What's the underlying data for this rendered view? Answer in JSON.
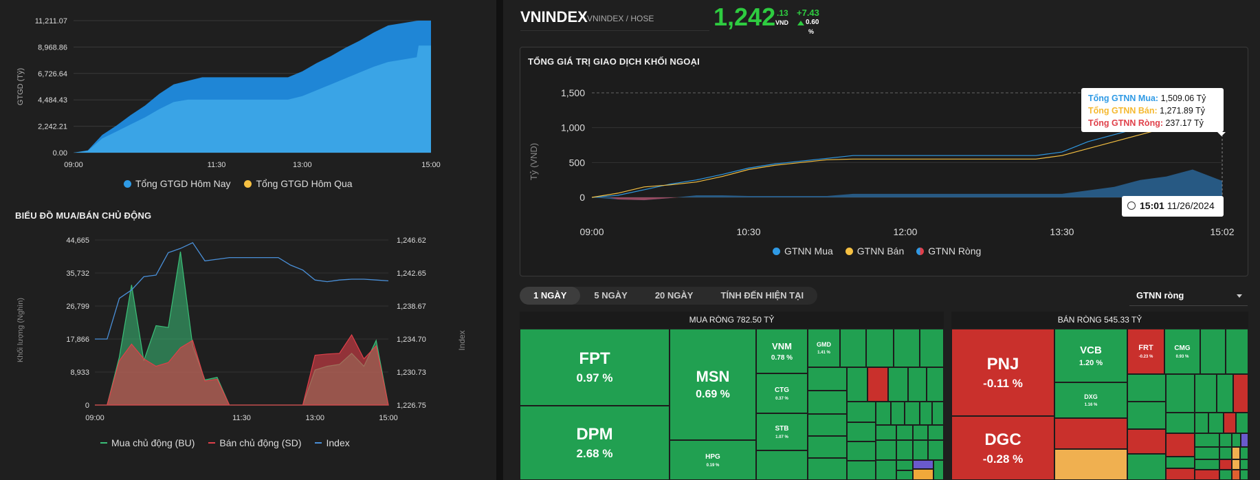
{
  "header": {
    "ticker": "VNINDEX",
    "sub": "VNINDEX / HOSE",
    "price_int": "1,242",
    "price_dec": ".13",
    "currency": "VND",
    "change": "+7.43",
    "change_pct": "0.60",
    "pct_sign": "%"
  },
  "colors": {
    "buy_blue": "#2f9ae5",
    "sell_yellow": "#f5b930",
    "net_red": "#e0404a",
    "bu_green": "#3bbf78",
    "sd_red": "#e0404a",
    "index_blue": "#4a90d9",
    "up_green": "#2ecc40",
    "tile_green": "#21a051",
    "tile_red": "#c9302c"
  },
  "chart_data": [
    {
      "type": "area",
      "ylabel": "GTGD (Tỷ)",
      "yticks": [
        "11,211.07",
        "8,968.86",
        "6,726.64",
        "4,484.43",
        "2,242.21",
        "0.00"
      ],
      "ylim": [
        0,
        11211.07
      ],
      "xticks": [
        "09:00",
        "11:30",
        "13:00",
        "15:00"
      ],
      "series": [
        {
          "name": "Tổng GTGD Hôm Nay",
          "x": [
            0,
            15,
            30,
            45,
            60,
            75,
            90,
            105,
            120,
            135,
            150,
            165,
            180,
            195,
            210,
            225,
            240,
            255,
            270,
            285,
            300,
            315,
            330,
            345,
            360,
            362,
            375
          ],
          "values": [
            0,
            200,
            1500,
            2300,
            3200,
            4000,
            5000,
            5800,
            6100,
            6400,
            6400,
            6400,
            6400,
            6400,
            6400,
            6400,
            6900,
            7600,
            8200,
            8900,
            9500,
            10200,
            10800,
            11000,
            11200,
            11211,
            11211
          ]
        },
        {
          "name": "Tổng GTGD Hôm Qua",
          "x": [
            0,
            15,
            30,
            45,
            60,
            75,
            90,
            105,
            120,
            135,
            150,
            165,
            180,
            195,
            210,
            225,
            240,
            255,
            270,
            285,
            300,
            315,
            330,
            345,
            360,
            362,
            375
          ],
          "values": [
            0,
            150,
            1200,
            1800,
            2400,
            3000,
            3700,
            4300,
            4500,
            4500,
            4500,
            4500,
            4500,
            4500,
            4500,
            4500,
            4800,
            5300,
            5800,
            6300,
            6800,
            7300,
            7700,
            7900,
            8100,
            9100,
            9100
          ]
        }
      ],
      "legend": [
        "Tổng GTGD Hôm Nay",
        "Tổng GTGD Hôm Qua"
      ]
    },
    {
      "type": "area",
      "title": "BIỂU ĐỒ MUA/BÁN CHỦ ĐỘNG",
      "ylabel": "Khối lượng (Nghìn)",
      "y2label": "Index",
      "yticks": [
        "44,665",
        "35,732",
        "26,799",
        "17,866",
        "8,933",
        "0"
      ],
      "y2ticks": [
        "1,246.62",
        "1,242.65",
        "1,238.67",
        "1,234.70",
        "1,230.73",
        "1,226.75"
      ],
      "ylim": [
        0,
        44665
      ],
      "y2lim": [
        1226.75,
        1246.62
      ],
      "xticks": [
        "09:00",
        "11:30",
        "13:00",
        "15:00"
      ],
      "series": [
        {
          "name": "Mua chủ động (BU)",
          "x": [
            0,
            15,
            30,
            45,
            60,
            75,
            90,
            105,
            120,
            135,
            150,
            165,
            180,
            195,
            210,
            225,
            240,
            255,
            270,
            285,
            300,
            315,
            330,
            345,
            360
          ],
          "values": [
            0,
            0,
            13000,
            32500,
            12000,
            21500,
            21000,
            41500,
            16000,
            6800,
            7500,
            0,
            0,
            0,
            0,
            0,
            0,
            0,
            9500,
            10500,
            11000,
            14000,
            10500,
            17500,
            0
          ]
        },
        {
          "name": "Bán chủ động (SD)",
          "x": [
            0,
            15,
            30,
            45,
            60,
            75,
            90,
            105,
            120,
            135,
            150,
            165,
            180,
            195,
            210,
            225,
            240,
            255,
            270,
            285,
            300,
            315,
            330,
            345,
            360
          ],
          "values": [
            0,
            0,
            12000,
            16500,
            12500,
            10500,
            11500,
            15500,
            17500,
            6500,
            7000,
            0,
            0,
            0,
            0,
            0,
            0,
            0,
            13500,
            13800,
            14000,
            19000,
            12500,
            16000,
            0
          ]
        },
        {
          "name": "Index",
          "x": [
            0,
            15,
            30,
            45,
            60,
            75,
            90,
            105,
            120,
            135,
            150,
            165,
            180,
            195,
            210,
            225,
            240,
            255,
            270,
            285,
            300,
            315,
            330,
            345,
            360
          ],
          "values": [
            1234.7,
            1234.7,
            1239.6,
            1240.6,
            1242.2,
            1242.4,
            1245.1,
            1245.6,
            1246.3,
            1244.1,
            1244.3,
            1244.5,
            1244.5,
            1244.5,
            1244.5,
            1244.5,
            1243.6,
            1243.0,
            1241.8,
            1241.6,
            1241.8,
            1241.9,
            1241.9,
            1241.8,
            1241.7
          ]
        }
      ],
      "legend": [
        "Mua chủ động (BU)",
        "Bán chủ động (SD)",
        "Index"
      ]
    },
    {
      "type": "line",
      "title": "TỔNG GIÁ TRỊ GIAO DỊCH KHỐI NGOẠI",
      "ylabel": "Tỷ (VND)",
      "yticks": [
        "1,500",
        "1,000",
        "500",
        "0"
      ],
      "ylim": [
        -100,
        1500
      ],
      "xticks": [
        "09:00",
        "10:30",
        "12:00",
        "13:30",
        "15:02"
      ],
      "series": [
        {
          "name": "GTNN Mua",
          "x": [
            0,
            15,
            30,
            45,
            60,
            75,
            90,
            105,
            120,
            135,
            150,
            165,
            180,
            195,
            210,
            225,
            240,
            255,
            270,
            285,
            300,
            315,
            330,
            345,
            362
          ],
          "values": [
            0,
            30,
            110,
            190,
            250,
            330,
            420,
            480,
            520,
            560,
            600,
            600,
            600,
            600,
            600,
            600,
            600,
            600,
            650,
            800,
            900,
            1000,
            1150,
            1300,
            1509.06
          ]
        },
        {
          "name": "GTNN Bán",
          "x": [
            0,
            15,
            30,
            45,
            60,
            75,
            90,
            105,
            120,
            135,
            150,
            165,
            180,
            195,
            210,
            225,
            240,
            255,
            270,
            285,
            300,
            315,
            330,
            345,
            362
          ],
          "values": [
            0,
            60,
            150,
            180,
            220,
            300,
            400,
            460,
            500,
            540,
            550,
            550,
            550,
            550,
            550,
            550,
            550,
            550,
            600,
            700,
            800,
            900,
            1000,
            1100,
            1271.89
          ]
        },
        {
          "name": "GTNN Ròng",
          "x": [
            0,
            15,
            30,
            45,
            60,
            75,
            90,
            105,
            120,
            135,
            150,
            165,
            180,
            195,
            210,
            225,
            240,
            255,
            270,
            285,
            300,
            315,
            330,
            345,
            362
          ],
          "values": [
            0,
            -30,
            -40,
            -10,
            30,
            30,
            20,
            20,
            20,
            20,
            50,
            50,
            50,
            50,
            50,
            50,
            50,
            50,
            50,
            100,
            150,
            250,
            300,
            400,
            237.17
          ]
        }
      ],
      "legend": [
        "GTNN Mua",
        "GTNN Bán",
        "GTNN Ròng"
      ]
    }
  ],
  "tooltip": {
    "buy_label": "Tổng GTNN Mua:",
    "buy_value": "1,509.06 Tỷ",
    "sell_label": "Tổng GTNN Bán:",
    "sell_value": "1,271.89 Tỷ",
    "net_label": "Tổng GTNN Ròng:",
    "net_value": "237.17 Tỷ",
    "time": "15:01",
    "date": "11/26/2024"
  },
  "tabs": [
    "1 NGÀY",
    "5 NGÀY",
    "20 NGÀY",
    "TÍNH ĐẾN HIỆN TẠI"
  ],
  "dropdown": {
    "value": "GTNN ròng"
  },
  "treemap": {
    "buy_title": "MUA RÒNG 782.50 TỶ",
    "sell_title": "BÁN RÒNG 545.33 TỶ",
    "buy_tiles": [
      {
        "name": "FPT",
        "pct": "0.97 %"
      },
      {
        "name": "DPM",
        "pct": "2.68 %"
      },
      {
        "name": "MSN",
        "pct": "0.69 %"
      },
      {
        "name": "HPG",
        "pct": "0.19 %"
      },
      {
        "name": "VNM",
        "pct": "0.78 %"
      },
      {
        "name": "CTG",
        "pct": "0.37 %"
      },
      {
        "name": "STB",
        "pct": "1.07 %"
      },
      {
        "name": "GMD",
        "pct": "1.41 %"
      }
    ],
    "sell_tiles": [
      {
        "name": "PNJ",
        "pct": "-0.11 %"
      },
      {
        "name": "DGC",
        "pct": "-0.28 %"
      },
      {
        "name": "VCB",
        "pct": "1.20 %"
      },
      {
        "name": "DXG",
        "pct": "1.16 %"
      },
      {
        "name": "FRT",
        "pct": "-0.23 %"
      },
      {
        "name": "CMG",
        "pct": "0.93 %"
      }
    ]
  }
}
